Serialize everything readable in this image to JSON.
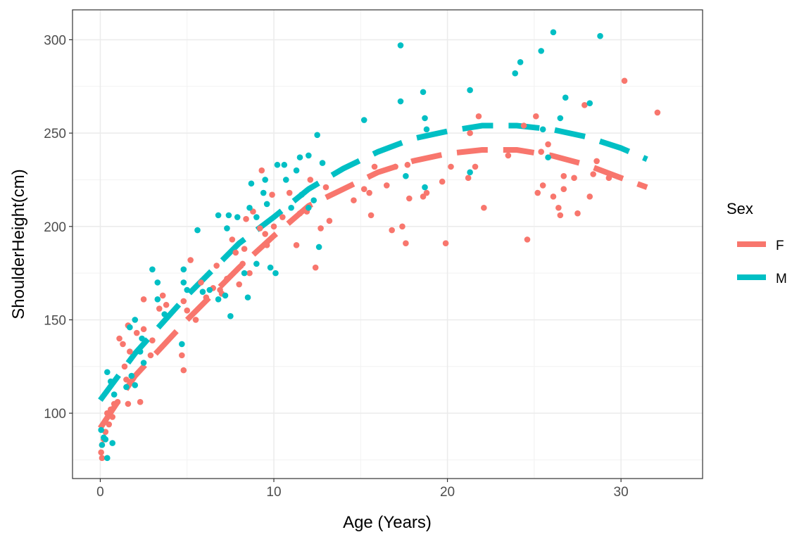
{
  "chart_data": {
    "type": "scatter",
    "title": "",
    "xlabel": "Age (Years)",
    "ylabel": "ShoulderHeight(cm)",
    "xlim": [
      -1.6,
      34.7
    ],
    "ylim": [
      65,
      316
    ],
    "xticks": [
      0,
      10,
      20,
      30
    ],
    "yticks": [
      100,
      150,
      200,
      250,
      300
    ],
    "grid": true,
    "legend": {
      "title": "Sex",
      "placement": "right"
    },
    "series": [
      {
        "name": "F",
        "color": "#F8766D",
        "points": [
          [
            0.05,
            79
          ],
          [
            0.1,
            76
          ],
          [
            0.1,
            83
          ],
          [
            0.2,
            86
          ],
          [
            0.3,
            90
          ],
          [
            0.3,
            96
          ],
          [
            0.4,
            100
          ],
          [
            0.5,
            94
          ],
          [
            0.6,
            102
          ],
          [
            0.7,
            98
          ],
          [
            0.8,
            105
          ],
          [
            1.0,
            106
          ],
          [
            1.1,
            140
          ],
          [
            1.3,
            137
          ],
          [
            1.4,
            125
          ],
          [
            1.5,
            118
          ],
          [
            1.6,
            105
          ],
          [
            1.6,
            147
          ],
          [
            1.7,
            133
          ],
          [
            2.1,
            143
          ],
          [
            2.3,
            106
          ],
          [
            2.5,
            161
          ],
          [
            2.5,
            145
          ],
          [
            2.9,
            131
          ],
          [
            3.0,
            139
          ],
          [
            3.4,
            156
          ],
          [
            3.6,
            163
          ],
          [
            3.8,
            158
          ],
          [
            4.7,
            131
          ],
          [
            4.8,
            123
          ],
          [
            4.8,
            160
          ],
          [
            5.0,
            155
          ],
          [
            5.2,
            182
          ],
          [
            5.5,
            150
          ],
          [
            5.8,
            170
          ],
          [
            6.1,
            162
          ],
          [
            6.5,
            167
          ],
          [
            6.7,
            179
          ],
          [
            6.9,
            166
          ],
          [
            7.0,
            164
          ],
          [
            7.3,
            172
          ],
          [
            7.6,
            193
          ],
          [
            7.8,
            186
          ],
          [
            8.0,
            169
          ],
          [
            8.2,
            180
          ],
          [
            8.3,
            188
          ],
          [
            8.4,
            204
          ],
          [
            8.6,
            175
          ],
          [
            8.8,
            208
          ],
          [
            9.2,
            199
          ],
          [
            9.3,
            230
          ],
          [
            9.5,
            196
          ],
          [
            9.6,
            190
          ],
          [
            9.9,
            217
          ],
          [
            10.0,
            200
          ],
          [
            10.5,
            205
          ],
          [
            10.9,
            218
          ],
          [
            11.3,
            190
          ],
          [
            11.5,
            207
          ],
          [
            11.9,
            208
          ],
          [
            12.1,
            225
          ],
          [
            12.4,
            178
          ],
          [
            12.7,
            199
          ],
          [
            13.0,
            221
          ],
          [
            13.2,
            203
          ],
          [
            14.6,
            214
          ],
          [
            15.2,
            220
          ],
          [
            15.5,
            218
          ],
          [
            15.6,
            206
          ],
          [
            15.8,
            232
          ],
          [
            16.5,
            222
          ],
          [
            16.8,
            198
          ],
          [
            17.0,
            232
          ],
          [
            17.4,
            200
          ],
          [
            17.6,
            191
          ],
          [
            17.7,
            233
          ],
          [
            17.8,
            215
          ],
          [
            18.6,
            216
          ],
          [
            18.8,
            218
          ],
          [
            19.7,
            224
          ],
          [
            19.9,
            191
          ],
          [
            20.2,
            232
          ],
          [
            21.2,
            226
          ],
          [
            21.3,
            250
          ],
          [
            21.6,
            232
          ],
          [
            21.8,
            259
          ],
          [
            22.1,
            210
          ],
          [
            23.5,
            238
          ],
          [
            24.4,
            254
          ],
          [
            24.6,
            193
          ],
          [
            25.1,
            259
          ],
          [
            25.2,
            218
          ],
          [
            25.4,
            240
          ],
          [
            25.5,
            222
          ],
          [
            25.8,
            244
          ],
          [
            26.1,
            216
          ],
          [
            26.4,
            210
          ],
          [
            26.5,
            206
          ],
          [
            26.7,
            227
          ],
          [
            26.7,
            220
          ],
          [
            27.3,
            226
          ],
          [
            27.5,
            207
          ],
          [
            27.9,
            265
          ],
          [
            28.2,
            216
          ],
          [
            28.4,
            228
          ],
          [
            28.6,
            235
          ],
          [
            29.3,
            226
          ],
          [
            30.2,
            278
          ],
          [
            32.1,
            261
          ]
        ],
        "fit": [
          [
            0,
            92
          ],
          [
            2,
            120
          ],
          [
            5,
            150
          ],
          [
            8,
            178
          ],
          [
            10,
            195
          ],
          [
            12,
            211
          ],
          [
            14,
            220
          ],
          [
            16,
            229
          ],
          [
            18,
            235
          ],
          [
            20,
            239
          ],
          [
            22,
            241
          ],
          [
            24,
            241
          ],
          [
            26,
            238
          ],
          [
            28,
            233
          ],
          [
            30,
            226
          ],
          [
            31.5,
            221
          ]
        ]
      },
      {
        "name": "M",
        "color": "#00BFC4",
        "points": [
          [
            0.05,
            91
          ],
          [
            0.1,
            83
          ],
          [
            0.2,
            87
          ],
          [
            0.3,
            86
          ],
          [
            0.4,
            76
          ],
          [
            0.4,
            122
          ],
          [
            0.6,
            117
          ],
          [
            0.7,
            84
          ],
          [
            0.8,
            110
          ],
          [
            1.5,
            114
          ],
          [
            1.7,
            146
          ],
          [
            1.8,
            120
          ],
          [
            2.0,
            115
          ],
          [
            2.0,
            150
          ],
          [
            2.3,
            133
          ],
          [
            2.4,
            140
          ],
          [
            2.5,
            127
          ],
          [
            3.0,
            177
          ],
          [
            3.3,
            161
          ],
          [
            3.3,
            170
          ],
          [
            3.7,
            153
          ],
          [
            4.7,
            137
          ],
          [
            4.8,
            177
          ],
          [
            4.8,
            170
          ],
          [
            5.0,
            166
          ],
          [
            5.6,
            198
          ],
          [
            5.9,
            165
          ],
          [
            6.3,
            166
          ],
          [
            6.8,
            206
          ],
          [
            6.8,
            161
          ],
          [
            7.2,
            163
          ],
          [
            7.3,
            199
          ],
          [
            7.4,
            206
          ],
          [
            7.5,
            152
          ],
          [
            7.9,
            205
          ],
          [
            8.3,
            175
          ],
          [
            8.5,
            162
          ],
          [
            8.6,
            210
          ],
          [
            8.7,
            223
          ],
          [
            9.0,
            205
          ],
          [
            9.0,
            180
          ],
          [
            9.4,
            218
          ],
          [
            9.5,
            225
          ],
          [
            9.6,
            212
          ],
          [
            9.8,
            178
          ],
          [
            10.1,
            175
          ],
          [
            10.2,
            233
          ],
          [
            10.6,
            233
          ],
          [
            10.7,
            225
          ],
          [
            11.0,
            210
          ],
          [
            11.3,
            230
          ],
          [
            11.5,
            237
          ],
          [
            11.6,
            217
          ],
          [
            12.0,
            238
          ],
          [
            12.0,
            210
          ],
          [
            12.3,
            214
          ],
          [
            12.5,
            249
          ],
          [
            12.6,
            189
          ],
          [
            12.8,
            234
          ],
          [
            15.2,
            257
          ],
          [
            17.3,
            297
          ],
          [
            17.3,
            267
          ],
          [
            17.6,
            227
          ],
          [
            18.6,
            272
          ],
          [
            18.7,
            258
          ],
          [
            18.8,
            252
          ],
          [
            18.7,
            221
          ],
          [
            21.3,
            273
          ],
          [
            21.3,
            229
          ],
          [
            23.9,
            282
          ],
          [
            24.2,
            288
          ],
          [
            25.4,
            294
          ],
          [
            25.5,
            252
          ],
          [
            25.8,
            237
          ],
          [
            26.1,
            304
          ],
          [
            26.5,
            258
          ],
          [
            26.8,
            269
          ],
          [
            28.2,
            266
          ],
          [
            28.8,
            302
          ]
        ],
        "fit": [
          [
            0,
            107
          ],
          [
            2,
            132
          ],
          [
            5,
            163
          ],
          [
            8,
            191
          ],
          [
            10,
            205
          ],
          [
            12,
            220
          ],
          [
            14,
            231
          ],
          [
            16,
            240
          ],
          [
            18,
            247
          ],
          [
            20,
            251
          ],
          [
            22,
            254
          ],
          [
            24,
            254
          ],
          [
            26,
            252
          ],
          [
            28,
            248
          ],
          [
            30,
            242
          ],
          [
            31.5,
            236
          ]
        ]
      }
    ]
  }
}
